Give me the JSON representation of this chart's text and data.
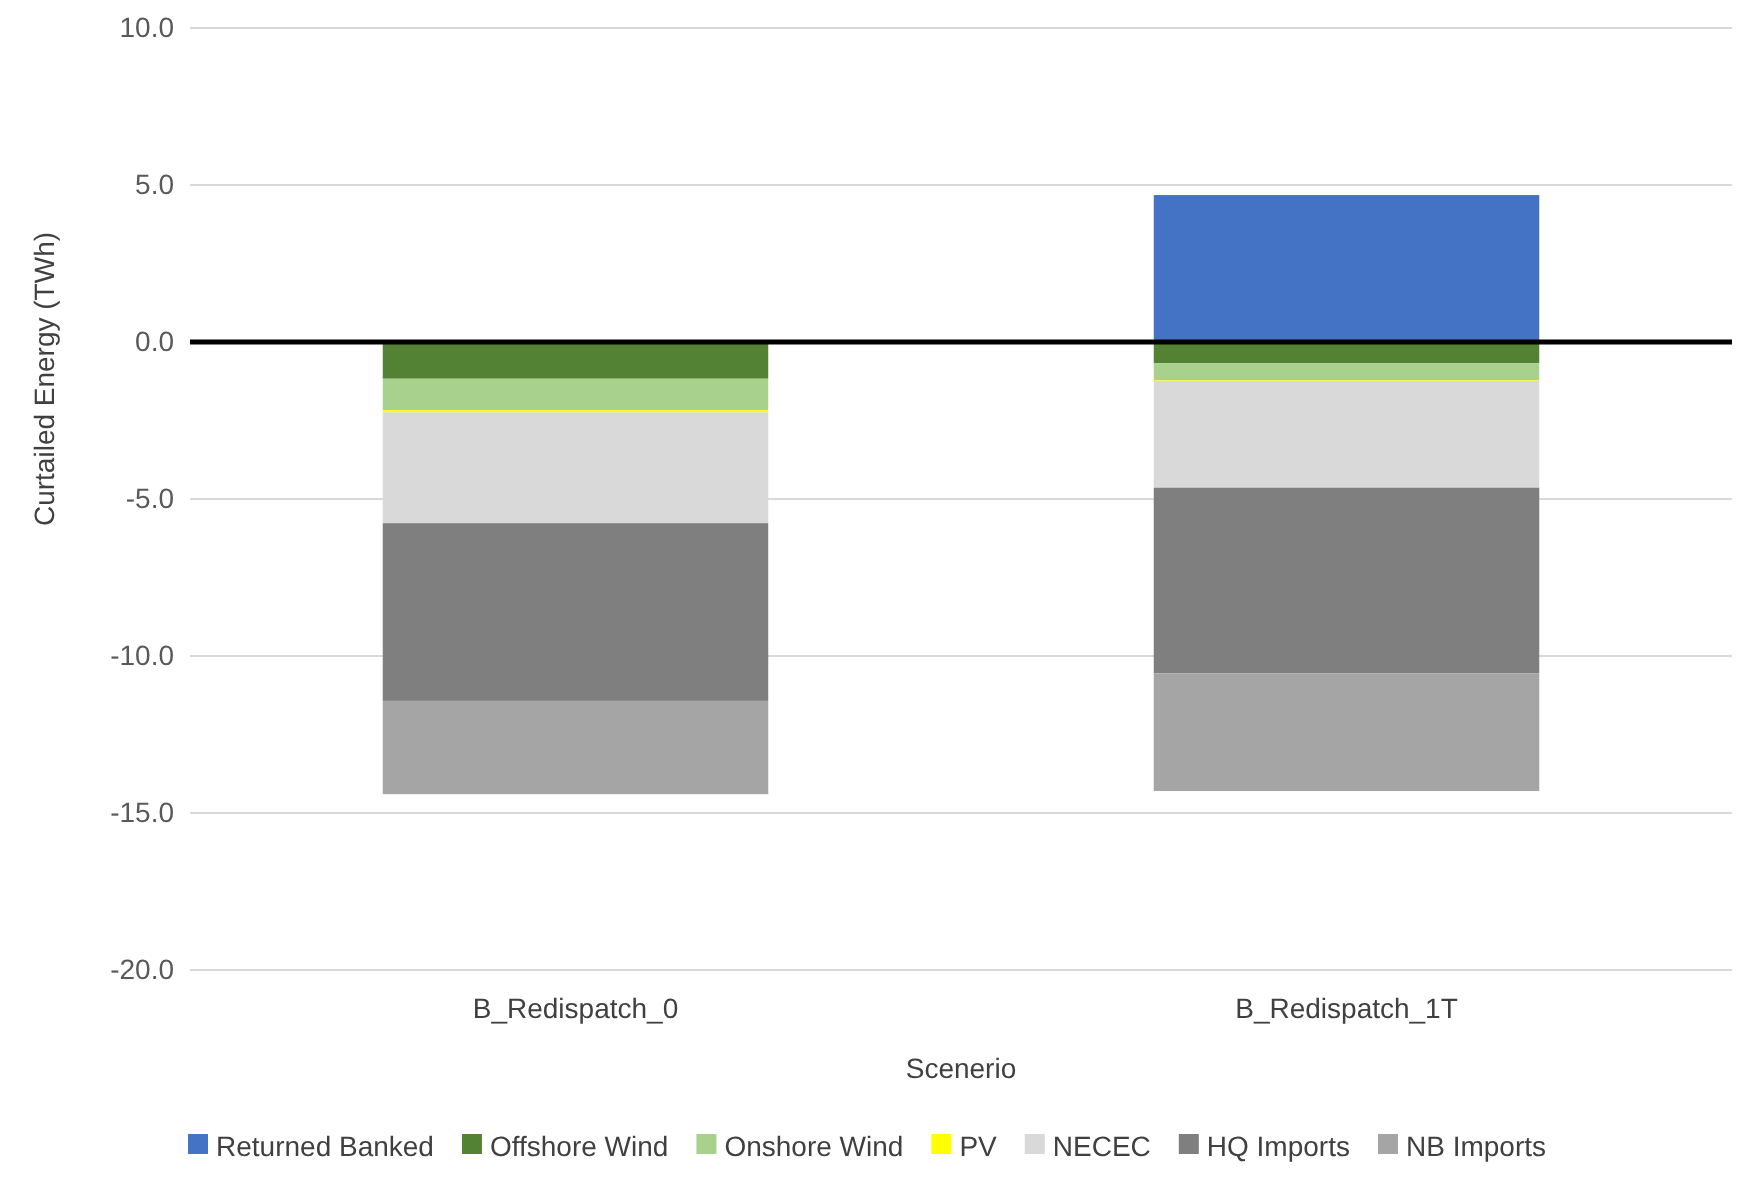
{
  "chart_data": {
    "type": "bar",
    "stacked": true,
    "xlabel": "Scenerio",
    "ylabel": "Curtailed Energy (TWh)",
    "categories": [
      "B_Redispatch_0",
      "B_Redispatch_1T"
    ],
    "series": [
      {
        "name": "Returned Banked",
        "color": "#4472c4",
        "values": [
          0,
          4.68
        ]
      },
      {
        "name": "Offshore Wind",
        "color": "#548235",
        "values": [
          -1.17,
          -0.68
        ]
      },
      {
        "name": "Onshore Wind",
        "color": "#a9d18e",
        "values": [
          -1.0,
          -0.54
        ]
      },
      {
        "name": "PV",
        "color": "#ffff00",
        "values": [
          -0.07,
          -0.02
        ]
      },
      {
        "name": "NECEC",
        "color": "#d9d9d9",
        "values": [
          -3.53,
          -3.4
        ]
      },
      {
        "name": "HQ Imports",
        "color": "#7f7f7f",
        "values": [
          -5.66,
          -5.91
        ]
      },
      {
        "name": "NB Imports",
        "color": "#a5a5a5",
        "values": [
          -2.97,
          -3.75
        ]
      }
    ],
    "ylim": [
      -20,
      10
    ],
    "yticks": [
      {
        "value": -20,
        "label": "-20.0"
      },
      {
        "value": -15,
        "label": "-15.0"
      },
      {
        "value": -10,
        "label": "-10.0"
      },
      {
        "value": -5,
        "label": "-5.0"
      },
      {
        "value": 0,
        "label": "0.0"
      },
      {
        "value": 5,
        "label": "5.0"
      },
      {
        "value": 10,
        "label": "10.0"
      }
    ],
    "grid": "y",
    "legend": "bottom"
  }
}
